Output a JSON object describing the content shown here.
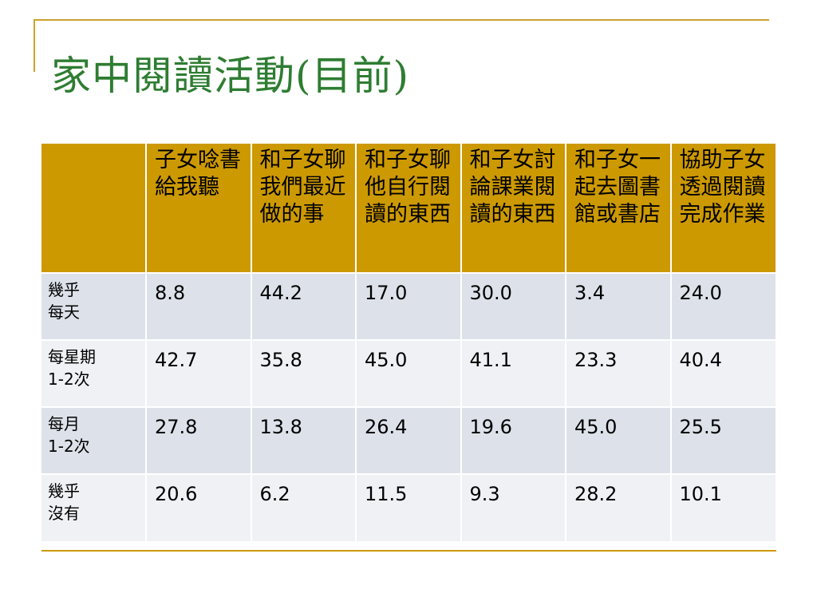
{
  "slide": {
    "title": "家中閱讀活動(目前)"
  },
  "table": {
    "corner": "",
    "headers": [
      "子女唸書給我聽",
      "和子女聊我們最近做的事",
      "和子女聊他自行閱讀的東西",
      "和子女討論課業閱讀的東西",
      "和子女一起去圖書館或書店",
      "協助子女透過閱讀完成作業"
    ],
    "rows": [
      {
        "label_line1": "幾乎",
        "label_line2": "每天",
        "values": [
          "8.8",
          "44.2",
          "17.0",
          "30.0",
          "3.4",
          "24.0"
        ]
      },
      {
        "label_line1": "每星期",
        "label_line2": "1-2次",
        "values": [
          "42.7",
          "35.8",
          "45.0",
          "41.1",
          "23.3",
          "40.4"
        ]
      },
      {
        "label_line1": "每月",
        "label_line2": "1-2次",
        "values": [
          "27.8",
          "13.8",
          "26.4",
          "19.6",
          "45.0",
          "25.5"
        ]
      },
      {
        "label_line1": "幾乎",
        "label_line2": "沒有",
        "values": [
          "20.6",
          "6.2",
          "11.5",
          "9.3",
          "28.2",
          "10.1"
        ]
      }
    ]
  },
  "colors": {
    "title": "#2e7d32",
    "header_bg": "#cc9900",
    "accent_line": "#c9a230",
    "row_odd": "#dde2ea",
    "row_even": "#eff1f5"
  }
}
